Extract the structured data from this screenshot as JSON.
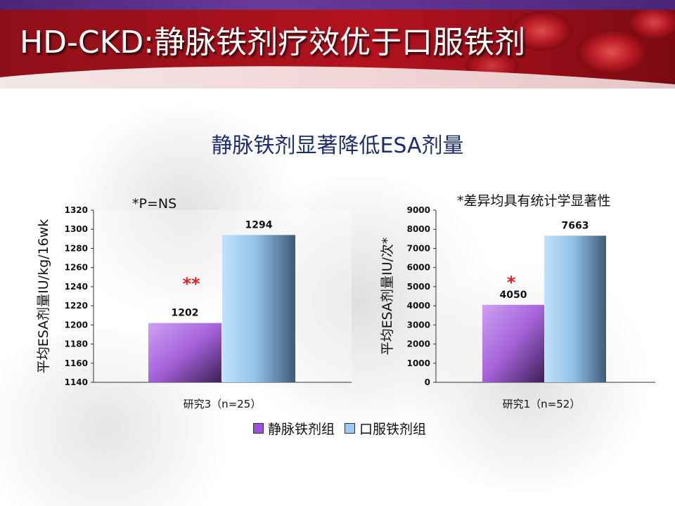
{
  "slide": {
    "title": "HD-CKD:静脉铁剂疗效优于口服铁剂",
    "subtitle": "静脉铁剂显著降低ESA剂量"
  },
  "legend": {
    "items": [
      {
        "label": "静脉铁剂组",
        "color": "#b57ae0"
      },
      {
        "label": "口服铁剂组",
        "color": "#a9d3f5"
      }
    ]
  },
  "colors": {
    "banner_red": "#a8141e",
    "banner_dark": "#5a0a12",
    "accent_purple": "#4b2578",
    "subtitle_blue": "#1f2f6e",
    "significance_red": "#e02020"
  },
  "chart_data": [
    {
      "type": "bar",
      "note": "*P=NS",
      "marker": "**",
      "ylabel": "平均ESA剂量IU/kg/16wk",
      "ylim": [
        1140,
        1320
      ],
      "yticks": [
        "1320",
        "1300",
        "1280",
        "1260",
        "1240",
        "1220",
        "1200",
        "1180",
        "1160",
        "1140"
      ],
      "ytick_values": [
        1320,
        1300,
        1280,
        1260,
        1240,
        1220,
        1200,
        1180,
        1160,
        1140
      ],
      "categories": [
        "研究3（n=25）"
      ],
      "series": [
        {
          "name": "静脉铁剂组",
          "values": [
            1202
          ],
          "labels": [
            "1202"
          ]
        },
        {
          "name": "口服铁剂组",
          "values": [
            1294
          ],
          "labels": [
            "1294"
          ]
        }
      ]
    },
    {
      "type": "bar",
      "note": "*差异均具有统计学显著性",
      "marker": "*",
      "ylabel": "平均ESA剂量IU/次*",
      "ylim": [
        0,
        9000
      ],
      "yticks": [
        "9000",
        "8000",
        "7000",
        "6000",
        "5000",
        "4000",
        "3000",
        "2000",
        "1000",
        "0"
      ],
      "ytick_values": [
        9000,
        8000,
        7000,
        6000,
        5000,
        4000,
        3000,
        2000,
        1000,
        0
      ],
      "categories": [
        "研究1（n=52）"
      ],
      "series": [
        {
          "name": "静脉铁剂组",
          "values": [
            4050
          ],
          "labels": [
            "4050"
          ]
        },
        {
          "name": "口服铁剂组",
          "values": [
            7663
          ],
          "labels": [
            "7663"
          ]
        }
      ]
    }
  ]
}
